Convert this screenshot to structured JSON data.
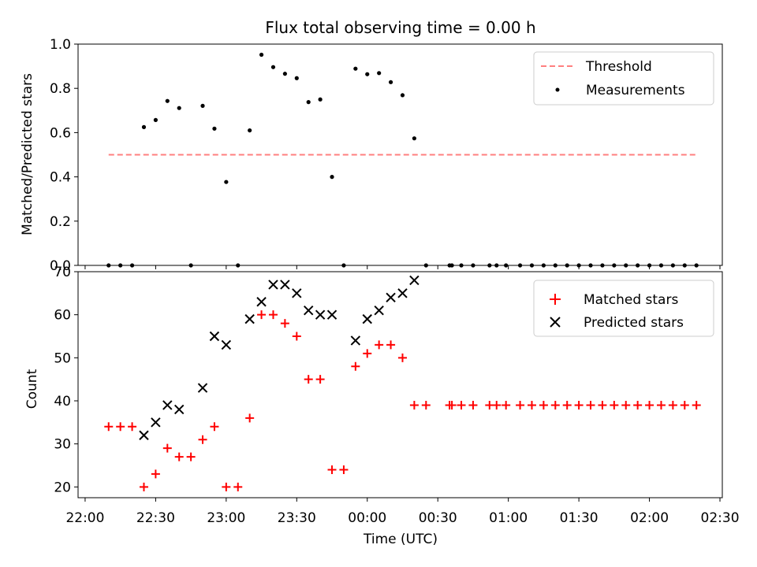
{
  "title": "Flux total observing time = 0.00 h",
  "chart_data": [
    {
      "type": "scatter",
      "panel": "top",
      "ylabel": "Matched/Predicted stars",
      "ylim": [
        0,
        1.0
      ],
      "yticks": [
        0.0,
        0.2,
        0.4,
        0.6,
        0.8,
        1.0
      ],
      "ytick_labels": [
        "0.0",
        "0.2",
        "0.4",
        "0.6",
        "0.8",
        "1.0"
      ],
      "xlim_minutes": [
        1317,
        1591
      ],
      "xticks": [
        1320,
        1350,
        1380,
        1410,
        1440,
        1470,
        1500,
        1530,
        1560,
        1590
      ],
      "legend": {
        "placement": "upper right",
        "entries": [
          "Threshold",
          "Measurements"
        ]
      },
      "threshold": {
        "name": "Threshold",
        "value": 0.5,
        "x_start": "22:10",
        "x_end": "02:20",
        "color": "#ff7f7f",
        "style": "dashed"
      },
      "series": [
        {
          "name": "Measurements",
          "color": "#000000",
          "x": [
            "22:10",
            "22:15",
            "22:20",
            "22:25",
            "22:30",
            "22:35",
            "22:40",
            "22:45",
            "22:50",
            "22:55",
            "23:00",
            "23:05",
            "23:10",
            "23:15",
            "23:20",
            "23:25",
            "23:30",
            "23:35",
            "23:40",
            "23:45",
            "23:50",
            "23:55",
            "00:00",
            "00:05",
            "00:10",
            "00:15",
            "00:20",
            "00:25",
            "00:35",
            "00:36",
            "00:40",
            "00:45",
            "00:52",
            "00:55",
            "00:59",
            "01:05",
            "01:10",
            "01:15",
            "01:20",
            "01:25",
            "01:30",
            "01:35",
            "01:40",
            "01:45",
            "01:50",
            "01:55",
            "02:00",
            "02:05",
            "02:10",
            "02:15",
            "02:20"
          ],
          "y": [
            0,
            0,
            0,
            0.625,
            0.657,
            0.743,
            0.711,
            0,
            0.721,
            0.618,
            0.377,
            0,
            0.61,
            0.952,
            0.896,
            0.866,
            0.846,
            0.738,
            0.75,
            0.4,
            0,
            0.889,
            0.864,
            0.869,
            0.828,
            0.769,
            0.574,
            0,
            0,
            0,
            0,
            0,
            0,
            0,
            0,
            0,
            0,
            0,
            0,
            0,
            0,
            0,
            0,
            0,
            0,
            0,
            0,
            0,
            0,
            0,
            0
          ]
        }
      ]
    },
    {
      "type": "scatter",
      "panel": "bottom",
      "xlabel": "Time (UTC)",
      "ylabel": "Count",
      "ylim": [
        17.5,
        70
      ],
      "yticks": [
        20,
        30,
        40,
        50,
        60,
        70
      ],
      "ytick_labels": [
        "20",
        "30",
        "40",
        "50",
        "60",
        "70"
      ],
      "xlim_minutes": [
        1317,
        1591
      ],
      "xticks": [
        1320,
        1350,
        1380,
        1410,
        1440,
        1470,
        1500,
        1530,
        1560,
        1590
      ],
      "xtick_labels": [
        "22:00",
        "22:30",
        "23:00",
        "23:30",
        "00:00",
        "00:30",
        "01:00",
        "01:30",
        "02:00",
        "02:30"
      ],
      "legend": {
        "placement": "upper right",
        "entries": [
          "Matched stars",
          "Predicted stars"
        ]
      },
      "series": [
        {
          "name": "Matched stars",
          "marker": "+",
          "color": "#ff0000",
          "x": [
            "22:10",
            "22:15",
            "22:20",
            "22:25",
            "22:30",
            "22:35",
            "22:40",
            "22:45",
            "22:50",
            "22:55",
            "23:00",
            "23:05",
            "23:10",
            "23:15",
            "23:20",
            "23:25",
            "23:30",
            "23:35",
            "23:40",
            "23:45",
            "23:50",
            "23:55",
            "00:00",
            "00:05",
            "00:10",
            "00:15",
            "00:20",
            "00:25",
            "00:35",
            "00:36",
            "00:40",
            "00:45",
            "00:52",
            "00:55",
            "00:59",
            "01:05",
            "01:10",
            "01:15",
            "01:20",
            "01:25",
            "01:30",
            "01:35",
            "01:40",
            "01:45",
            "01:50",
            "01:55",
            "02:00",
            "02:05",
            "02:10",
            "02:15",
            "02:20"
          ],
          "y": [
            34,
            34,
            34,
            20,
            23,
            29,
            27,
            27,
            31,
            34,
            20,
            20,
            36,
            60,
            60,
            58,
            55,
            45,
            45,
            24,
            24,
            48,
            51,
            53,
            53,
            50,
            39,
            39,
            39,
            39,
            39,
            39,
            39,
            39,
            39,
            39,
            39,
            39,
            39,
            39,
            39,
            39,
            39,
            39,
            39,
            39,
            39,
            39,
            39,
            39,
            39
          ]
        },
        {
          "name": "Predicted stars",
          "marker": "x",
          "color": "#000000",
          "x": [
            "22:25",
            "22:30",
            "22:35",
            "22:40",
            "22:50",
            "22:55",
            "23:00",
            "23:10",
            "23:15",
            "23:20",
            "23:25",
            "23:30",
            "23:35",
            "23:40",
            "23:45",
            "23:55",
            "00:00",
            "00:05",
            "00:10",
            "00:15",
            "00:20"
          ],
          "y": [
            32,
            35,
            39,
            38,
            43,
            55,
            53,
            59,
            63,
            67,
            67,
            65,
            61,
            60,
            60,
            54,
            59,
            61,
            64,
            65,
            68
          ]
        }
      ]
    }
  ]
}
